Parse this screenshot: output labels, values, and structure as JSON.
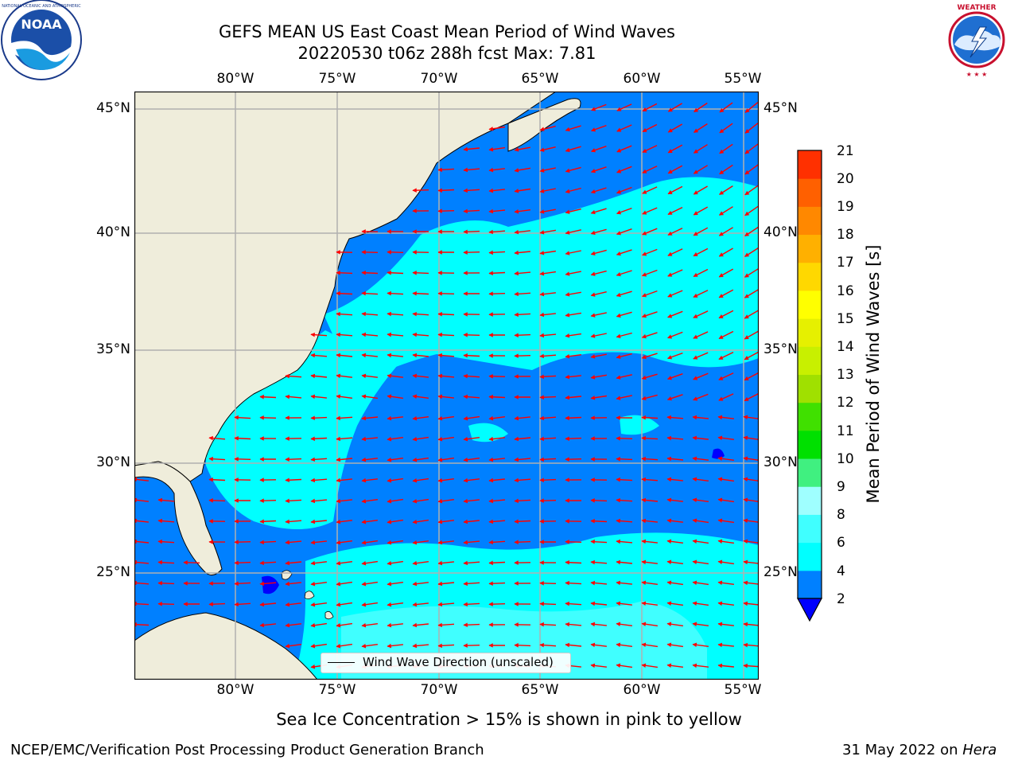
{
  "header": {
    "title_line1": "GEFS MEAN US East Coast Mean Period of Wind Waves",
    "title_line2": "20220530 t06z 288h fcst   Max: 7.81",
    "left_logo_text": "NOAA",
    "left_logo_ring_text": "NATIONAL OCEANIC AND ATMOSPHERIC ADMINISTRATION · U.S. DEPARTMENT OF COMMERCE",
    "right_logo_ring_text": "NATIONAL WEATHER SERVICE"
  },
  "map": {
    "lon_labels": [
      "80°W",
      "75°W",
      "70°W",
      "65°W",
      "60°W",
      "55°W"
    ],
    "lat_labels": [
      "45°N",
      "40°N",
      "35°N",
      "30°N",
      "25°N"
    ],
    "extent": {
      "lon": [
        -85,
        -54.5
      ],
      "lat": [
        20.5,
        46
      ]
    },
    "legend_label": "Wind Wave Direction (unscaled)",
    "colors": {
      "land": "#efeddb",
      "coast": "#000000",
      "grid": "#b0b0b0",
      "arrow": "#ff0000"
    }
  },
  "colorbar": {
    "label": "Mean Period of Wind Waves [s]",
    "ticks": [
      "21",
      "20",
      "19",
      "18",
      "17",
      "16",
      "15",
      "14",
      "13",
      "12",
      "11",
      "10",
      "9",
      "8",
      "6",
      "4",
      "2"
    ],
    "colors": [
      "#0000ff",
      "#0080ff",
      "#00ffff",
      "#40ffff",
      "#9fffff",
      "#40f080",
      "#00e000",
      "#40e000",
      "#a0e000",
      "#c8f000",
      "#e6f000",
      "#ffff00",
      "#ffd800",
      "#ffb000",
      "#ff8800",
      "#ff6000",
      "#ff3000",
      "#ff0000"
    ]
  },
  "footer": {
    "note": "Sea Ice Concentration > 15% is shown in pink to yellow",
    "left": "NCEP/EMC/Verification Post Processing Product Generation Branch",
    "right_prefix": "31 May 2022 on ",
    "right_host": "Hera"
  }
}
